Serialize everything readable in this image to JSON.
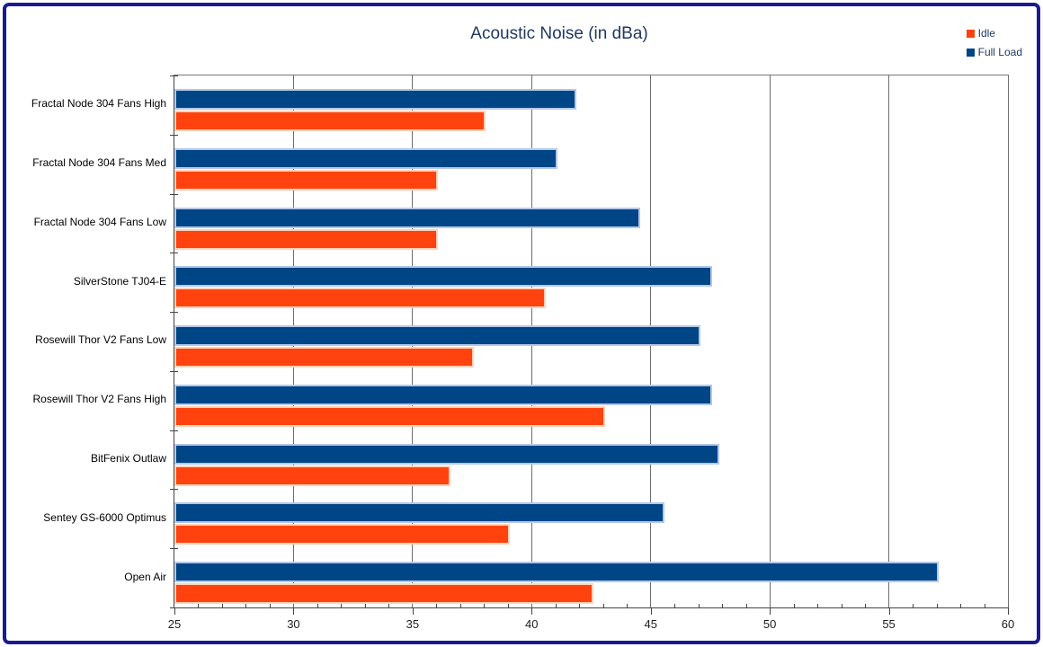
{
  "frame": {
    "border_color": "#1b1b91",
    "background": "#ffffff"
  },
  "chart_data": {
    "type": "bar",
    "orientation": "horizontal",
    "title": "Acoustic Noise (in dBa)",
    "categories": [
      "Fractal Node 304 Fans High",
      "Fractal Node 304 Fans Med",
      "Fractal Node 304 Fans Low",
      "SilverStone TJ04-E",
      "Rosewill Thor V2 Fans Low",
      "Rosewill Thor V2 Fans High",
      "BitFenix Outlaw",
      "Sentey GS-6000 Optimus",
      "Open Air"
    ],
    "series": [
      {
        "name": "Idle",
        "color": "#ff420e",
        "border_color": "#ffd2b8",
        "values": [
          38,
          36,
          36,
          40.5,
          37.5,
          43,
          36.5,
          39,
          42.5
        ]
      },
      {
        "name": "Full Load",
        "color": "#004586",
        "border_color": "#b3c8e8",
        "values": [
          41.8,
          41,
          44.5,
          47.5,
          47,
          47.5,
          47.8,
          45.5,
          57
        ]
      }
    ],
    "x_axis": {
      "min": 25,
      "max": 60,
      "major_tick": 5,
      "minor_tick": 1,
      "tick_labels": [
        "25",
        "30",
        "35",
        "40",
        "45",
        "50",
        "55",
        "60"
      ]
    },
    "legend": {
      "position": "top-right",
      "entries": [
        "Idle",
        "Full Load"
      ]
    },
    "grid": true
  },
  "colors": {
    "title_text": "#203864",
    "legend_text": "#1f3864",
    "axis_text": "#1d1d1d",
    "gridline": "#6e6e6e",
    "axis_line": "#444444"
  }
}
